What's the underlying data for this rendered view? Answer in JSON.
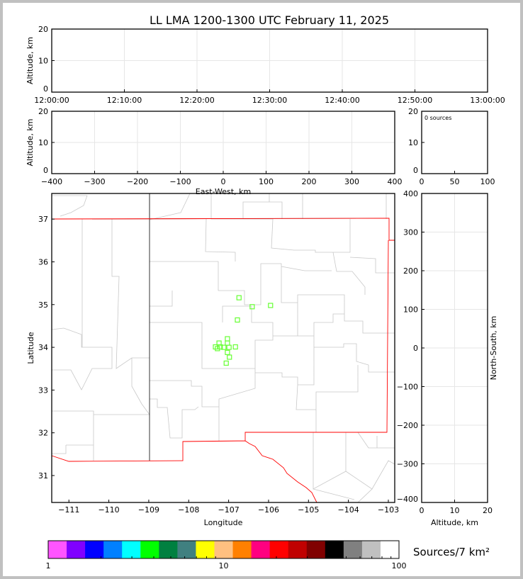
{
  "title": "LL LMA 1200-1300 UTC February 11, 2025",
  "chart_data": [
    {
      "type": "scatter",
      "panel": "altitude-time",
      "ylabel": "Altitude, km",
      "ylim": [
        0,
        20
      ],
      "yticks": [
        "0",
        "10",
        "20"
      ],
      "xticks": [
        "12:00:00",
        "12:10:00",
        "12:20:00",
        "12:30:00",
        "12:40:00",
        "12:50:00",
        "13:00:00"
      ],
      "points": []
    },
    {
      "type": "scatter",
      "panel": "altitude-eastwest",
      "ylabel": "Altitude, km",
      "xlabel": "East-West, km",
      "xlim": [
        -400,
        400
      ],
      "ylim": [
        0,
        20
      ],
      "xticks": [
        "−400",
        "−300",
        "−200",
        "−100",
        "0",
        "100",
        "200",
        "300",
        "400"
      ],
      "yticks": [
        "0",
        "10",
        "20"
      ],
      "points": []
    },
    {
      "type": "bar",
      "panel": "altitude-histogram",
      "annotation": "0 sources",
      "xlim": [
        0,
        100
      ],
      "ylim": [
        0,
        20
      ],
      "xticks": [
        "0",
        "50",
        "100"
      ],
      "yticks": [
        "0",
        "10",
        "20"
      ],
      "values": []
    },
    {
      "type": "scatter",
      "panel": "plan-view-map",
      "xlabel": "Longitude",
      "ylabel": "Latitude",
      "xlim": [
        -111.43,
        -102.84
      ],
      "ylim": [
        30.37,
        37.6
      ],
      "xticks": [
        "−111",
        "−110",
        "−109",
        "−108",
        "−107",
        "−106",
        "−105",
        "−104",
        "−103"
      ],
      "yticks": [
        "31",
        "32",
        "33",
        "34",
        "35",
        "36",
        "37"
      ],
      "marker_color": "#66ff33",
      "points": [
        {
          "lon": -106.74,
          "lat": 35.16
        },
        {
          "lon": -106.41,
          "lat": 34.95
        },
        {
          "lon": -105.95,
          "lat": 34.98
        },
        {
          "lon": -106.78,
          "lat": 34.64
        },
        {
          "lon": -107.03,
          "lat": 34.2
        },
        {
          "lon": -107.03,
          "lat": 34.1
        },
        {
          "lon": -107.24,
          "lat": 34.1
        },
        {
          "lon": -107.33,
          "lat": 34.01
        },
        {
          "lon": -107.21,
          "lat": 34.01
        },
        {
          "lon": -107.28,
          "lat": 33.97
        },
        {
          "lon": -107.12,
          "lat": 34.0
        },
        {
          "lon": -106.99,
          "lat": 34.0
        },
        {
          "lon": -106.83,
          "lat": 34.01
        },
        {
          "lon": -107.03,
          "lat": 33.88
        },
        {
          "lon": -106.98,
          "lat": 33.77
        },
        {
          "lon": -107.06,
          "lat": 33.63
        }
      ]
    },
    {
      "type": "scatter",
      "panel": "northsouth-altitude",
      "ylabel": "North-South, km",
      "xlabel": "Altitude, km",
      "xlim": [
        0,
        20
      ],
      "ylim": [
        -400,
        400
      ],
      "xticks": [
        "0",
        "10",
        "20"
      ],
      "yticks": [
        "−400",
        "−300",
        "−200",
        "−100",
        "0",
        "100",
        "200",
        "300",
        "400"
      ],
      "points": []
    }
  ],
  "colorbar": {
    "label": "Sources/7 km²",
    "scale": "log",
    "range": [
      1,
      100
    ],
    "ticks": [
      "1",
      "10",
      "100"
    ],
    "colors": [
      "#ff55ff",
      "#8000ff",
      "#0000ff",
      "#0080ff",
      "#00ffff",
      "#00ff00",
      "#008040",
      "#408080",
      "#ffff00",
      "#ffc080",
      "#ff8000",
      "#ff0080",
      "#ff0000",
      "#c00000",
      "#800000",
      "#000000",
      "#808080",
      "#c0c0c0",
      "#ffffff"
    ]
  }
}
